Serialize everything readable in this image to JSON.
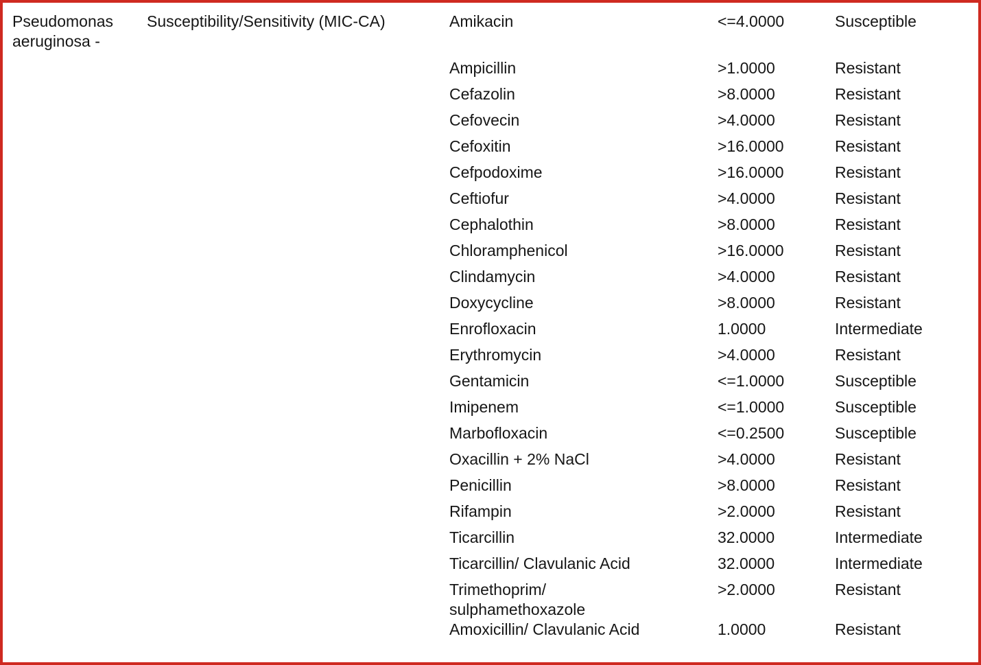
{
  "report": {
    "border_color": "#cf2a21",
    "text_color": "#161616",
    "organism": "Pseudomonas\naeruginosa -",
    "test_name": "Susceptibility/Sensitivity (MIC-CA)",
    "results": [
      {
        "antibiotic": "Amikacin",
        "mic": "<=4.0000",
        "interpretation": "Susceptible"
      },
      {
        "antibiotic": "Ampicillin",
        "mic": ">1.0000",
        "interpretation": "Resistant"
      },
      {
        "antibiotic": "Cefazolin",
        "mic": ">8.0000",
        "interpretation": "Resistant"
      },
      {
        "antibiotic": "Cefovecin",
        "mic": ">4.0000",
        "interpretation": "Resistant"
      },
      {
        "antibiotic": "Cefoxitin",
        "mic": ">16.0000",
        "interpretation": "Resistant"
      },
      {
        "antibiotic": "Cefpodoxime",
        "mic": ">16.0000",
        "interpretation": "Resistant"
      },
      {
        "antibiotic": "Ceftiofur",
        "mic": ">4.0000",
        "interpretation": "Resistant"
      },
      {
        "antibiotic": "Cephalothin",
        "mic": ">8.0000",
        "interpretation": "Resistant"
      },
      {
        "antibiotic": "Chloramphenicol",
        "mic": ">16.0000",
        "interpretation": "Resistant"
      },
      {
        "antibiotic": "Clindamycin",
        "mic": ">4.0000",
        "interpretation": "Resistant"
      },
      {
        "antibiotic": "Doxycycline",
        "mic": ">8.0000",
        "interpretation": "Resistant"
      },
      {
        "antibiotic": "Enrofloxacin",
        "mic": "1.0000",
        "interpretation": "Intermediate"
      },
      {
        "antibiotic": "Erythromycin",
        "mic": ">4.0000",
        "interpretation": "Resistant"
      },
      {
        "antibiotic": "Gentamicin",
        "mic": "<=1.0000",
        "interpretation": "Susceptible"
      },
      {
        "antibiotic": "Imipenem",
        "mic": "<=1.0000",
        "interpretation": "Susceptible"
      },
      {
        "antibiotic": "Marbofloxacin",
        "mic": "<=0.2500",
        "interpretation": "Susceptible"
      },
      {
        "antibiotic": "Oxacillin + 2% NaCl",
        "mic": ">4.0000",
        "interpretation": "Resistant"
      },
      {
        "antibiotic": "Penicillin",
        "mic": ">8.0000",
        "interpretation": "Resistant"
      },
      {
        "antibiotic": "Rifampin",
        "mic": ">2.0000",
        "interpretation": "Resistant"
      },
      {
        "antibiotic": "Ticarcillin",
        "mic": "32.0000",
        "interpretation": "Intermediate"
      },
      {
        "antibiotic": "Ticarcillin/ Clavulanic Acid",
        "mic": "32.0000",
        "interpretation": "Intermediate"
      },
      {
        "antibiotic": "Trimethoprim/\nsulphamethoxazole",
        "mic": ">2.0000",
        "interpretation": "Resistant"
      },
      {
        "antibiotic": "Amoxicillin/ Clavulanic Acid",
        "mic": "1.0000",
        "interpretation": "Resistant"
      }
    ]
  }
}
